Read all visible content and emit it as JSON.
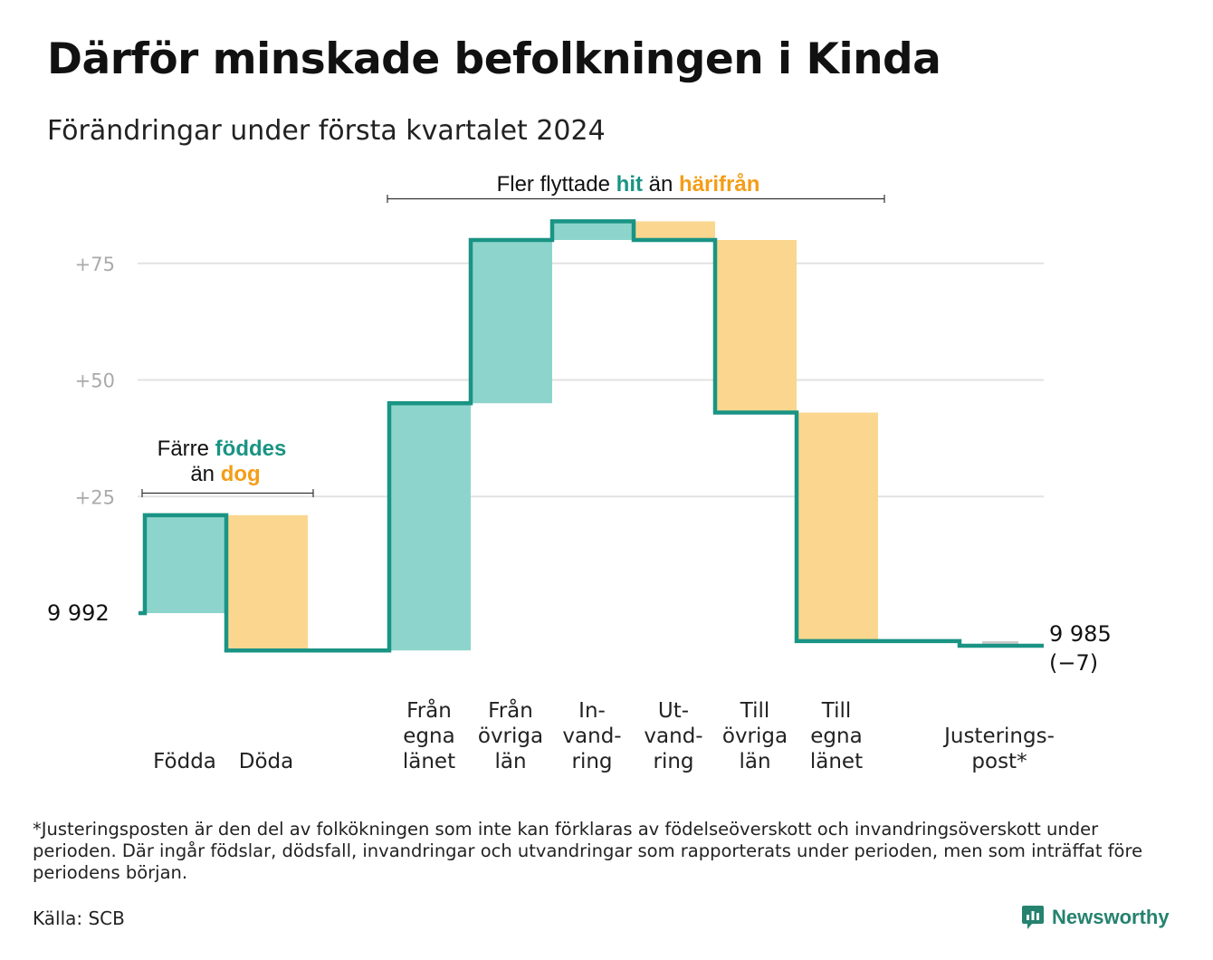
{
  "title": "Därför minskade befolkningen i Kinda",
  "subtitle": "Förändringar under första kvartalet 2024",
  "chart_data": {
    "type": "waterfall",
    "start_value": 9992,
    "start_label": "9 992",
    "end_value": 9985,
    "end_label_line1": "9 985",
    "end_label_line2": "(−7)",
    "y_ticks": [
      {
        "label": "+25",
        "offset": 25
      },
      {
        "label": "+50",
        "offset": 50
      },
      {
        "label": "+75",
        "offset": 75
      }
    ],
    "ylim_offset": [
      -10,
      84
    ],
    "steps": [
      {
        "label_lines": [
          "Födda"
        ],
        "value": 21,
        "kind": "in"
      },
      {
        "label_lines": [
          "Döda"
        ],
        "value": -29,
        "kind": "out"
      },
      {
        "label_lines": [
          "Från",
          "egna",
          "länet"
        ],
        "value": 53,
        "kind": "in"
      },
      {
        "label_lines": [
          "Från",
          "övriga",
          "län"
        ],
        "value": 35,
        "kind": "in"
      },
      {
        "label_lines": [
          "In-",
          "vand-",
          "ring"
        ],
        "value": 4,
        "kind": "in"
      },
      {
        "label_lines": [
          "Ut-",
          "vand-",
          "ring"
        ],
        "value": -4,
        "kind": "out"
      },
      {
        "label_lines": [
          "Till",
          "övriga",
          "län"
        ],
        "value": -37,
        "kind": "out"
      },
      {
        "label_lines": [
          "Till",
          "egna",
          "länet"
        ],
        "value": -49,
        "kind": "out"
      },
      {
        "label_lines": [
          "Justerings-",
          "post*"
        ],
        "value": -1,
        "kind": "adjust"
      }
    ],
    "colors": {
      "in": "#8dd5cc",
      "out": "#fad68f",
      "adjust": "#cccccc",
      "line": "#1a9484",
      "grid": "#e2e2e2",
      "hl_in": "#1a9484",
      "hl_out": "#f49d17"
    },
    "annotations": {
      "births_deaths": {
        "pre1": "Färre",
        "hl1": "föddes",
        "pre2": "än",
        "hl2": "dog"
      },
      "migration": {
        "pre": "Fler flyttade",
        "hl1": "hit",
        "mid": "än",
        "hl2": "härifrån"
      }
    }
  },
  "footnote": "*Justeringsposten är den del av folkökningen som inte kan förklaras av födelseöverskott och invandringsöverskott under perioden. Där ingår födslar, dödsfall, invandringar och utvandringar som rapporterats under perioden, men som inträffat före periodens början.",
  "source": "Källa: SCB",
  "brand": "Newsworthy"
}
